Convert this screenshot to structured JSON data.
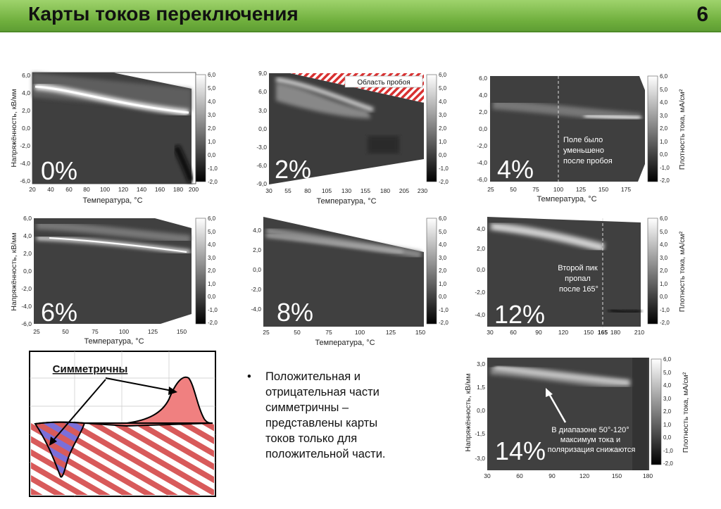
{
  "header": {
    "title": "Карты токов переключения",
    "slide_number": "6"
  },
  "axis_labels": {
    "y": "Напряжённость, кВ/мм",
    "x": "Температура, °C",
    "cbar": "Плотность тока, мА/см²"
  },
  "cbar_ticks": [
    "6,0",
    "5,0",
    "4,0",
    "3,0",
    "2,0",
    "1,0",
    "0,0",
    "-1,0",
    "-2,0"
  ],
  "panels": [
    {
      "id": "p0",
      "label": "0%",
      "x_ticks": [
        "20",
        "40",
        "60",
        "80",
        "100",
        "120",
        "140",
        "160",
        "180",
        "200"
      ],
      "y_ticks": [
        "6,0",
        "4,0",
        "2,0",
        "0,0",
        "-2,0",
        "-4,0",
        "-6,0"
      ]
    },
    {
      "id": "p2",
      "label": "2%",
      "x_ticks": [
        "30",
        "55",
        "80",
        "105",
        "130",
        "155",
        "180",
        "205",
        "230"
      ],
      "y_ticks": [
        "9,0",
        "6,0",
        "3,0",
        "0,0",
        "-3,0",
        "-6,0",
        "-9,0"
      ],
      "annotation": "Область пробоя"
    },
    {
      "id": "p4",
      "label": "4%",
      "x_ticks": [
        "25",
        "50",
        "75",
        "100",
        "125",
        "150",
        "175"
      ],
      "y_ticks": [
        "6,0",
        "4,0",
        "2,0",
        "0,0",
        "-2,0",
        "-4,0",
        "-6,0"
      ],
      "annotation": [
        "Поле было",
        "уменьшено",
        "после пробоя"
      ]
    },
    {
      "id": "p6",
      "label": "6%",
      "x_ticks": [
        "25",
        "50",
        "75",
        "100",
        "125",
        "150"
      ],
      "y_ticks": [
        "6,0",
        "4,0",
        "2,0",
        "0,0",
        "-2,0",
        "-4,0",
        "-6,0"
      ]
    },
    {
      "id": "p8",
      "label": "8%",
      "x_ticks": [
        "25",
        "50",
        "75",
        "100",
        "125",
        "150"
      ],
      "y_ticks": [
        "4,0",
        "2,0",
        "0,0",
        "-2,0",
        "-4,0"
      ]
    },
    {
      "id": "p12",
      "label": "12%",
      "x_ticks": [
        "30",
        "60",
        "90",
        "120",
        "150",
        "165",
        "180",
        "210"
      ],
      "y_ticks": [
        "4,0",
        "2,0",
        "0,0",
        "-2,0",
        "-4,0"
      ],
      "annotation": [
        "Второй пик",
        "пропал",
        "после 165°"
      ]
    },
    {
      "id": "p14",
      "label": "14%",
      "x_ticks": [
        "30",
        "60",
        "90",
        "120",
        "150",
        "180"
      ],
      "y_ticks": [
        "3,0",
        "1,5",
        "0,0",
        "-1,5",
        "-3,0"
      ],
      "annotation": [
        "В диапазоне 50°-120°",
        "максимум тока и",
        "поляризация снижаются"
      ]
    }
  ],
  "schematic": {
    "label": "Симметричны"
  },
  "bullet_text": [
    "Положительная и",
    "отрицательная части",
    "симметричны –",
    "представлены карты",
    "токов только для",
    "положительной части."
  ],
  "colors": {
    "header_green": "#6eae3c",
    "plot_gray": "#3c3c3c",
    "breakdown_red": "#e03030",
    "peak_fill": "#f08080"
  }
}
